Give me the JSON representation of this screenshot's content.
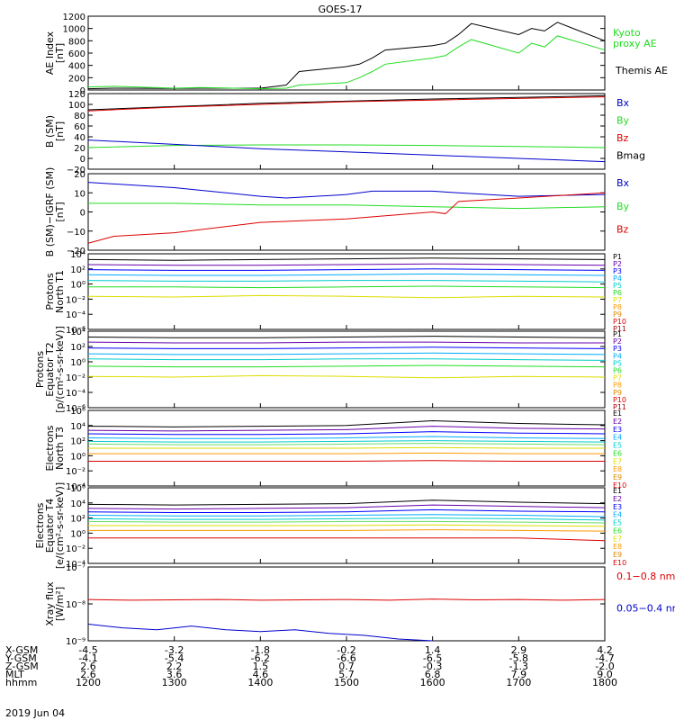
{
  "title": "GOES-17",
  "date_label": "2019 Jun 04",
  "colors": {
    "black": "#000000",
    "green": "#22dd22",
    "blue": "#0000cc",
    "red": "#dd0000",
    "purple": "#6600aa",
    "navy": "#0000ff",
    "cyan": "#00aaff",
    "teal": "#00cccc",
    "lime": "#66dd66",
    "yellow": "#dddd00",
    "orange": "#ff9900",
    "darkred": "#aa0000"
  },
  "chart_data": [
    {
      "type": "line",
      "ylabel": [
        "AE Index",
        "[nT]"
      ],
      "yticks": [
        "1200",
        "1000",
        "800",
        "600",
        "400",
        "200",
        "0"
      ],
      "ylim": [
        0,
        1200
      ],
      "legend": [
        {
          "name": "Kyoto",
          "color": "#22dd22"
        },
        {
          "name": "proxy AE",
          "color": "#22dd22"
        },
        {
          "name": "Themis AE",
          "color": "#000000"
        }
      ],
      "series": [
        {
          "name": "Themis AE",
          "color": "#000000",
          "x": [
            1200,
            1230,
            1300,
            1330,
            1400,
            1430,
            1445,
            1500,
            1515,
            1530,
            1545,
            1600,
            1615,
            1630,
            1645,
            1700,
            1715,
            1730,
            1745,
            1800
          ],
          "values": [
            20,
            30,
            25,
            30,
            30,
            80,
            300,
            380,
            420,
            520,
            650,
            720,
            760,
            900,
            1080,
            900,
            1000,
            960,
            1100,
            800
          ]
        },
        {
          "name": "Kyoto proxy AE",
          "color": "#22dd22",
          "x": [
            1200,
            1230,
            1300,
            1330,
            1400,
            1430,
            1445,
            1500,
            1515,
            1530,
            1545,
            1600,
            1615,
            1630,
            1645,
            1700,
            1715,
            1730,
            1745,
            1800
          ],
          "values": [
            50,
            60,
            30,
            40,
            20,
            30,
            80,
            120,
            200,
            300,
            420,
            520,
            560,
            700,
            820,
            600,
            760,
            700,
            880,
            650
          ]
        }
      ]
    },
    {
      "type": "line",
      "ylabel": [
        "B (SM)",
        "[nT]"
      ],
      "yticks": [
        "120",
        "100",
        "80",
        "60",
        "40",
        "20",
        "0",
        "−20"
      ],
      "ylim": [
        -20,
        120
      ],
      "legend": [
        {
          "name": "Bx",
          "color": "#0000cc"
        },
        {
          "name": "By",
          "color": "#22dd22"
        },
        {
          "name": "Bz",
          "color": "#dd0000"
        },
        {
          "name": "Bmag",
          "color": "#000000"
        }
      ],
      "series": [
        {
          "name": "Bmag",
          "color": "#000000",
          "x": [
            1200,
            1300,
            1400,
            1500,
            1600,
            1700,
            1800
          ],
          "values": [
            90,
            96,
            102,
            106,
            110,
            113,
            116
          ]
        },
        {
          "name": "Bz",
          "color": "#dd0000",
          "x": [
            1200,
            1300,
            1400,
            1500,
            1600,
            1700,
            1800
          ],
          "values": [
            88,
            95,
            100,
            105,
            108,
            111,
            114
          ]
        },
        {
          "name": "By",
          "color": "#22dd22",
          "x": [
            1200,
            1300,
            1400,
            1500,
            1600,
            1700,
            1800
          ],
          "values": [
            20,
            24,
            25,
            25,
            24,
            22,
            20
          ]
        },
        {
          "name": "Bx",
          "color": "#0000cc",
          "x": [
            1200,
            1300,
            1400,
            1500,
            1600,
            1700,
            1800
          ],
          "values": [
            34,
            26,
            18,
            12,
            6,
            0,
            -6
          ]
        }
      ]
    },
    {
      "type": "line",
      "ylabel": [
        "B (SM)−IGRF (SM)",
        "[nT]"
      ],
      "yticks": [
        "20",
        "10",
        "0",
        "−10",
        "−20"
      ],
      "ylim": [
        -22,
        22
      ],
      "legend": [
        {
          "name": "Bx",
          "color": "#0000cc"
        },
        {
          "name": "By",
          "color": "#22dd22"
        },
        {
          "name": "Bz",
          "color": "#dd0000"
        }
      ],
      "series": [
        {
          "name": "Bx",
          "color": "#0000cc",
          "x": [
            1200,
            1300,
            1400,
            1430,
            1500,
            1530,
            1600,
            1630,
            1700,
            1800
          ],
          "values": [
            17,
            14,
            9,
            8,
            10,
            12,
            12,
            11,
            9,
            10
          ]
        },
        {
          "name": "By",
          "color": "#22dd22",
          "x": [
            1200,
            1300,
            1400,
            1500,
            1600,
            1700,
            1800
          ],
          "values": [
            5,
            5,
            4,
            4,
            3,
            2,
            3
          ]
        },
        {
          "name": "Bz",
          "color": "#dd0000",
          "x": [
            1200,
            1230,
            1300,
            1400,
            1500,
            1600,
            1615,
            1630,
            1700,
            1800
          ],
          "values": [
            -18,
            -14,
            -12,
            -6,
            -4,
            0,
            -1,
            6,
            8,
            11
          ]
        }
      ]
    },
    {
      "type": "line",
      "log_scale": true,
      "ylabel": [
        "Protons",
        "North T1"
      ],
      "yticks": [
        "10⁴",
        "10²",
        "10⁰",
        "10⁻²",
        "10⁻⁴",
        "10⁻⁶"
      ],
      "ylim": [
        -6.5,
        4
      ],
      "legend": [
        "P1",
        "P2",
        "P3",
        "P4",
        "P5",
        "P6",
        "P7",
        "P8",
        "P9",
        "P10",
        "P11"
      ],
      "series": [
        {
          "name": "P1",
          "color": "#000000",
          "log_values": [
            3.2,
            3.1,
            3.2,
            3.3,
            3.4,
            3.3,
            3.2
          ]
        },
        {
          "name": "P2",
          "color": "#6600aa",
          "log_values": [
            2.5,
            2.4,
            2.4,
            2.5,
            2.6,
            2.5,
            2.4
          ]
        },
        {
          "name": "P3",
          "color": "#0000ff",
          "log_values": [
            1.8,
            1.7,
            1.7,
            1.8,
            1.9,
            1.8,
            1.7
          ]
        },
        {
          "name": "P4",
          "color": "#00aaff",
          "log_values": [
            1.1,
            1.0,
            1.0,
            1.1,
            1.2,
            1.1,
            1.0
          ]
        },
        {
          "name": "P5",
          "color": "#00cccc",
          "log_values": [
            0.3,
            0.2,
            0.2,
            0.3,
            0.3,
            0.2,
            0.1
          ]
        },
        {
          "name": "P6",
          "color": "#22dd22",
          "log_values": [
            -0.6,
            -0.6,
            -0.7,
            -0.6,
            -0.5,
            -0.6,
            -0.7
          ]
        },
        {
          "name": "P7",
          "color": "#dddd00",
          "log_values": [
            -1.9,
            -2.0,
            -1.8,
            -1.9,
            -2.1,
            -1.9,
            -2.0
          ]
        }
      ]
    },
    {
      "type": "line",
      "log_scale": true,
      "ylabel": [
        "Protons",
        "Equator T2",
        "[p/(cm²-s-sr-keV)]"
      ],
      "yticks": [
        "10⁴",
        "10²",
        "10⁰",
        "10⁻²",
        "10⁻⁴",
        "10⁻⁶"
      ],
      "ylim": [
        -6.5,
        4
      ],
      "legend": [
        "P1",
        "P2",
        "P3",
        "P4",
        "P5",
        "P6",
        "P7",
        "P8",
        "P9",
        "P10",
        "P11"
      ],
      "series": [
        {
          "name": "P1",
          "color": "#000000",
          "log_values": [
            3.2,
            3.1,
            3.1,
            3.2,
            3.3,
            3.2,
            3.1
          ]
        },
        {
          "name": "P2",
          "color": "#6600aa",
          "log_values": [
            2.5,
            2.4,
            2.4,
            2.5,
            2.5,
            2.4,
            2.4
          ]
        },
        {
          "name": "P3",
          "color": "#0000ff",
          "log_values": [
            1.7,
            1.6,
            1.6,
            1.7,
            1.8,
            1.7,
            1.6
          ]
        },
        {
          "name": "P4",
          "color": "#00aaff",
          "log_values": [
            0.9,
            0.8,
            0.8,
            0.9,
            1.0,
            0.9,
            0.8
          ]
        },
        {
          "name": "P5",
          "color": "#00cccc",
          "log_values": [
            0.2,
            0.1,
            0.1,
            0.2,
            0.2,
            0.1,
            0.0
          ]
        },
        {
          "name": "P6",
          "color": "#22dd22",
          "log_values": [
            -0.8,
            -0.9,
            -0.9,
            -0.8,
            -0.7,
            -0.8,
            -0.9
          ]
        },
        {
          "name": "P7",
          "color": "#dddd00",
          "log_values": [
            -2.2,
            -2.3,
            -2.1,
            -2.2,
            -2.4,
            -2.2,
            -2.3
          ]
        }
      ]
    },
    {
      "type": "line",
      "log_scale": true,
      "ylabel": [
        "Electrons",
        "North T3"
      ],
      "yticks": [
        "10⁶",
        "10⁴",
        "10²",
        "10⁰",
        "10⁻²",
        "10⁻⁴"
      ],
      "ylim": [
        -4.5,
        6.5
      ],
      "legend": [
        "E1",
        "E2",
        "E3",
        "E4",
        "E5",
        "E6",
        "E7",
        "E8",
        "E9",
        "E10"
      ],
      "series": [
        {
          "name": "E1",
          "color": "#000000",
          "log_values": [
            4.2,
            4.1,
            4.2,
            4.3,
            5.0,
            4.6,
            4.4
          ]
        },
        {
          "name": "E2",
          "color": "#6600aa",
          "log_values": [
            3.6,
            3.5,
            3.6,
            3.7,
            4.2,
            3.9,
            3.8
          ]
        },
        {
          "name": "E3",
          "color": "#0000ff",
          "log_values": [
            3.1,
            3.0,
            3.0,
            3.1,
            3.4,
            3.2,
            3.1
          ]
        },
        {
          "name": "E4",
          "color": "#00aaff",
          "log_values": [
            2.5,
            2.4,
            2.4,
            2.5,
            2.7,
            2.5,
            2.4
          ]
        },
        {
          "name": "E5",
          "color": "#00cccc",
          "log_values": [
            2.0,
            1.9,
            1.9,
            2.0,
            2.1,
            2.0,
            1.9
          ]
        },
        {
          "name": "E6",
          "color": "#66dd66",
          "log_values": [
            1.6,
            1.5,
            1.5,
            1.6,
            1.7,
            1.6,
            1.5
          ]
        },
        {
          "name": "E7",
          "color": "#dddd00",
          "log_values": [
            1.0,
            1.0,
            1.0,
            1.0,
            1.1,
            1.0,
            1.0
          ]
        },
        {
          "name": "E8",
          "color": "#ff9900",
          "log_values": [
            0.2,
            0.2,
            0.2,
            0.2,
            0.3,
            0.2,
            0.2
          ]
        },
        {
          "name": "E9",
          "color": "#dd0000",
          "log_values": [
            -0.9,
            -0.9,
            -0.9,
            -0.9,
            -0.8,
            -0.9,
            -0.9
          ]
        }
      ]
    },
    {
      "type": "line",
      "log_scale": true,
      "ylabel": [
        "Electrons",
        "Equator T4",
        "[e/(cm²-s-sr-keV)]"
      ],
      "yticks": [
        "10⁶",
        "10⁴",
        "10²",
        "10⁰",
        "10⁻²",
        "10⁻⁴"
      ],
      "ylim": [
        -4.5,
        6.5
      ],
      "legend": [
        "E1",
        "E2",
        "E3",
        "E4",
        "E5",
        "E6",
        "E7",
        "E8",
        "E9",
        "E10"
      ],
      "series": [
        {
          "name": "E1",
          "color": "#000000",
          "log_values": [
            4.1,
            4.0,
            4.1,
            4.2,
            4.7,
            4.4,
            4.2
          ]
        },
        {
          "name": "E2",
          "color": "#6600aa",
          "log_values": [
            3.5,
            3.4,
            3.5,
            3.6,
            4.0,
            3.8,
            3.6
          ]
        },
        {
          "name": "E3",
          "color": "#0000ff",
          "log_values": [
            3.0,
            2.9,
            2.9,
            3.0,
            3.3,
            3.1,
            3.0
          ]
        },
        {
          "name": "E4",
          "color": "#00aaff",
          "log_values": [
            2.5,
            2.4,
            2.4,
            2.5,
            2.6,
            2.5,
            2.3
          ]
        },
        {
          "name": "E5",
          "color": "#00cccc",
          "log_values": [
            2.0,
            1.9,
            1.9,
            2.0,
            2.1,
            2.0,
            1.8
          ]
        },
        {
          "name": "E6",
          "color": "#66dd66",
          "log_values": [
            1.6,
            1.5,
            1.5,
            1.6,
            1.6,
            1.5,
            1.4
          ]
        },
        {
          "name": "E7",
          "color": "#dddd00",
          "log_values": [
            1.0,
            1.0,
            1.0,
            1.0,
            1.1,
            1.0,
            0.9
          ]
        },
        {
          "name": "E8",
          "color": "#ff9900",
          "log_values": [
            0.3,
            0.3,
            0.3,
            0.3,
            0.4,
            0.3,
            0.2
          ]
        },
        {
          "name": "E9",
          "color": "#dd0000",
          "log_values": [
            -0.8,
            -0.8,
            -0.8,
            -0.8,
            -0.8,
            -0.8,
            -1.2
          ]
        }
      ]
    },
    {
      "type": "line",
      "log_scale": true,
      "ylabel": [
        "Xray flux",
        "[W/m²]"
      ],
      "yticks": [
        "10⁻⁷",
        "10⁻⁸",
        "10⁻⁹"
      ],
      "ylim": [
        -9.0,
        -7.0
      ],
      "legend": [
        {
          "name": "0.1−0.8 nm",
          "color": "#dd0000"
        },
        {
          "name": "0.05−0.4 nm",
          "color": "#0000cc"
        }
      ],
      "series": [
        {
          "name": "0.1−0.8 nm",
          "color": "#dd0000",
          "log_values": [
            -7.88,
            -7.9,
            -7.89,
            -7.88,
            -7.9,
            -7.89,
            -7.88,
            -7.9,
            -7.87,
            -7.89,
            -7.88,
            -7.9,
            -7.88
          ]
        },
        {
          "name": "0.05−0.4 nm",
          "color": "#0000cc",
          "log_values": [
            -8.55,
            -8.65,
            -8.7,
            -8.6,
            -8.7,
            -8.75,
            -8.7,
            -8.8,
            -8.85,
            -8.95,
            -9.0
          ]
        }
      ]
    }
  ],
  "x_axis": {
    "row_labels": [
      "X-GSM",
      "Y-GSM",
      "Z-GSM",
      "MLT",
      "hhmm"
    ],
    "ticks": [
      {
        "vals": [
          "-4.5",
          "-4.1",
          "2.6",
          "2.6",
          "1200"
        ]
      },
      {
        "vals": [
          "-3.2",
          "-5.4",
          "2.2",
          "3.6",
          "1300"
        ]
      },
      {
        "vals": [
          "-1.8",
          "-6.2",
          "1.5",
          "4.6",
          "1400"
        ]
      },
      {
        "vals": [
          "-0.2",
          "-6.6",
          "0.7",
          "5.7",
          "1500"
        ]
      },
      {
        "vals": [
          "1.4",
          "-6.5",
          "-0.3",
          "6.8",
          "1600"
        ]
      },
      {
        "vals": [
          "2.9",
          "-5.8",
          "-1.3",
          "7.9",
          "1700"
        ]
      },
      {
        "vals": [
          "4.2",
          "-4.7",
          "-2.0",
          "9.0",
          "1800"
        ]
      }
    ]
  }
}
